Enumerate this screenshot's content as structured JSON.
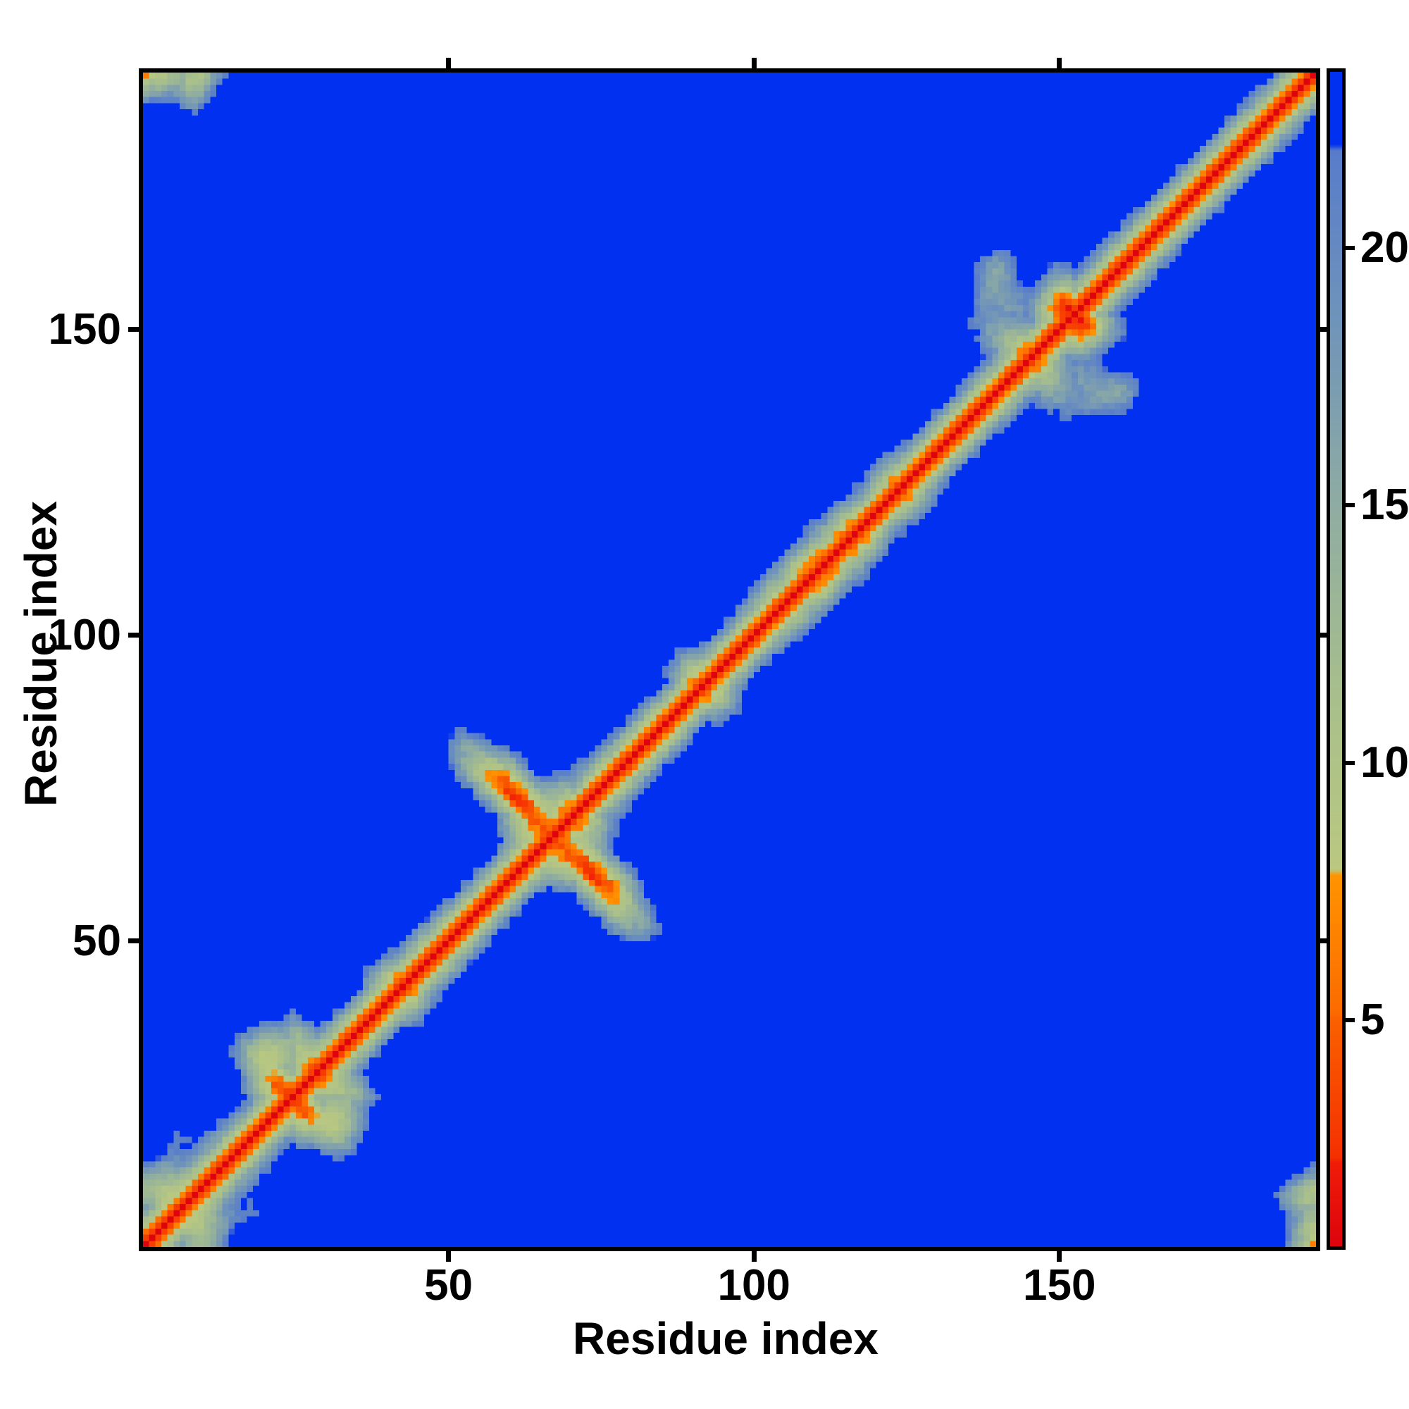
{
  "figure": {
    "background_color": "#ffffff",
    "frame_color": "#000000",
    "text_color": "#000000"
  },
  "chart_data": {
    "type": "heatmap",
    "title": "",
    "xlabel": "Residue index",
    "ylabel": "Residue index",
    "x_range": [
      0,
      192
    ],
    "y_range": [
      0,
      192
    ],
    "x_ticks": [
      50,
      100,
      150
    ],
    "y_ticks": [
      50,
      100,
      150
    ],
    "n_residues": 192,
    "grid": false,
    "legend": "none",
    "description": "Symmetric residue-residue pairwise distance matrix of a ~192-residue protein; red diagonal (short distances), orange contacts (<8), pale-green/gray mid-range (8-22), saturated blue background (>22)",
    "colorbar": {
      "side": "right",
      "range": [
        0.6,
        23.4
      ],
      "ticks": [
        5,
        10,
        15,
        20
      ]
    },
    "colormap_stops": [
      {
        "v": 0.6,
        "rgb": [
          222,
          4,
          14
        ]
      },
      {
        "v": 2.2,
        "rgb": [
          240,
          28,
          8
        ]
      },
      {
        "v": 2.3,
        "rgb": [
          245,
          48,
          2
        ]
      },
      {
        "v": 5.0,
        "rgb": [
          250,
          96,
          0
        ]
      },
      {
        "v": 5.1,
        "rgb": [
          251,
          106,
          0
        ]
      },
      {
        "v": 7.8,
        "rgb": [
          255,
          148,
          0
        ]
      },
      {
        "v": 7.9,
        "rgb": [
          186,
          200,
          128
        ]
      },
      {
        "v": 11.0,
        "rgb": [
          170,
          192,
          138
        ]
      },
      {
        "v": 15.0,
        "rgb": [
          143,
          172,
          162
        ]
      },
      {
        "v": 19.0,
        "rgb": [
          108,
          145,
          188
        ]
      },
      {
        "v": 21.9,
        "rgb": [
          88,
          124,
          202
        ]
      },
      {
        "v": 22.0,
        "rgb": [
          2,
          48,
          240
        ]
      },
      {
        "v": 23.4,
        "rgb": [
          2,
          48,
          240
        ]
      }
    ],
    "generator": {
      "seed": 29,
      "harmonics": 24,
      "amp_decay": 1.35,
      "fine_samples": 4096,
      "bond_length": 3.8,
      "target_median_distance": 23.0,
      "scale_clamp": [
        0.85,
        1.2
      ],
      "jitter": 1.2
    }
  }
}
